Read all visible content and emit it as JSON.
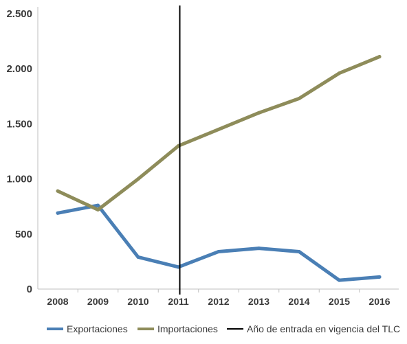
{
  "chart_data": {
    "type": "line",
    "title": "",
    "xlabel": "",
    "ylabel": "",
    "categories": [
      "2008",
      "2009",
      "2010",
      "2011",
      "2012",
      "2013",
      "2014",
      "2015",
      "2016"
    ],
    "ylim": [
      0,
      2500
    ],
    "y_ticks": [
      0,
      500,
      1000,
      1500,
      2000,
      2500
    ],
    "y_tick_labels": [
      "0",
      "500",
      "1.000",
      "1.500",
      "2.000",
      "2.500"
    ],
    "grid": false,
    "legend_position": "bottom",
    "series": [
      {
        "name": "Exportaciones",
        "color": "#4a7fb5",
        "values": [
          690,
          760,
          290,
          200,
          340,
          370,
          340,
          80,
          110
        ]
      },
      {
        "name": "Importaciones",
        "color": "#8e8c5a",
        "values": [
          890,
          720,
          1000,
          1300,
          1450,
          1600,
          1730,
          1960,
          2110
        ]
      }
    ],
    "vertical_marker": {
      "x": "2011",
      "label": "Año de entrada en vigencia del TLC",
      "color": "#000000"
    }
  }
}
